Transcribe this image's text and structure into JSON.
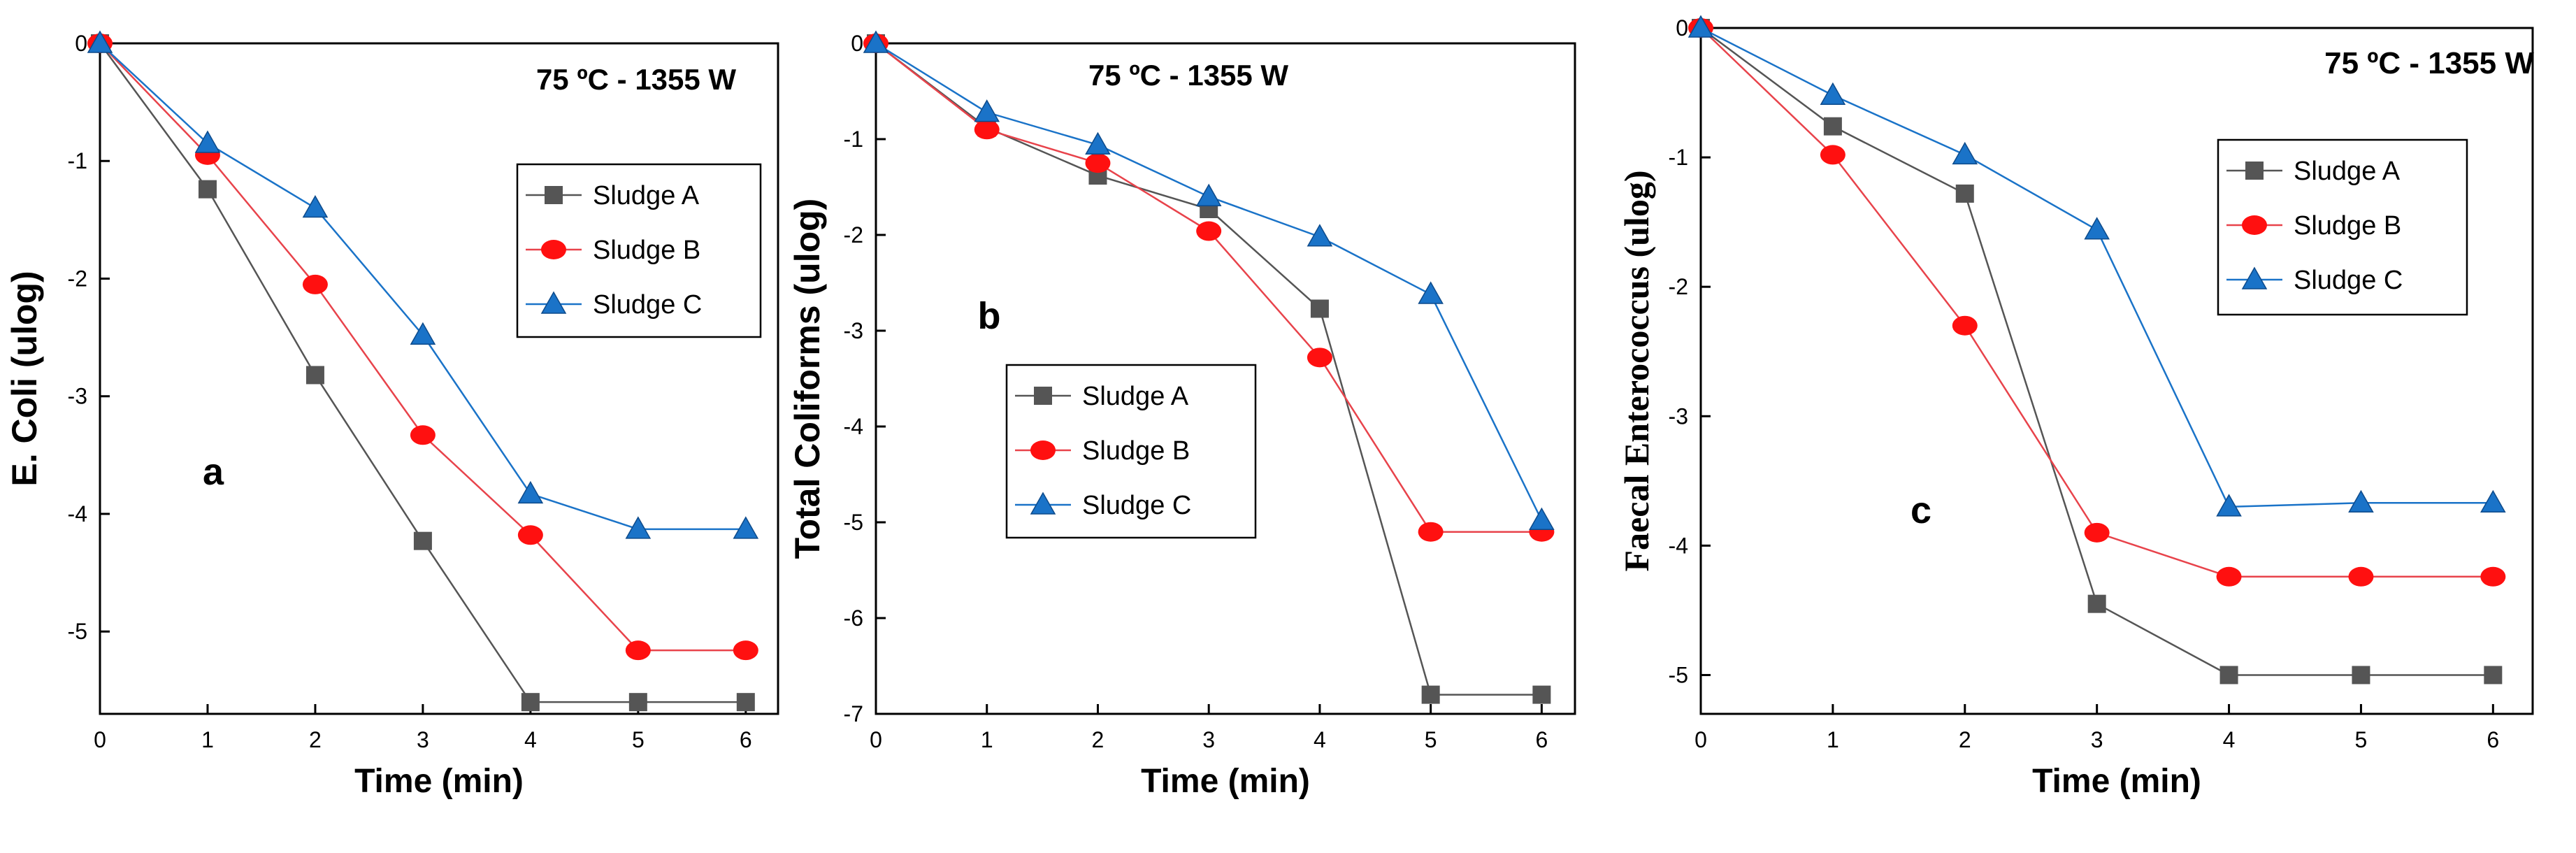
{
  "chart_data": [
    {
      "type": "line",
      "panel_label": "a",
      "annotation": "75 ºC - 1355 W",
      "xlabel": "Time (min)",
      "ylabel": "E. Coli (ulog)",
      "xlim": [
        0,
        6.3
      ],
      "ylim": [
        -5.7,
        0
      ],
      "xticks": [
        0,
        1,
        2,
        3,
        4,
        5,
        6
      ],
      "yticks": [
        0,
        -1,
        -2,
        -3,
        -4,
        -5
      ],
      "x": [
        0,
        1,
        2,
        3,
        4,
        5,
        6
      ],
      "legend_position": "upper-right",
      "series": [
        {
          "name": "Sludge A",
          "marker": "square",
          "line_color": "#555555",
          "marker_color": "#555555",
          "values": [
            0,
            -1.24,
            -2.82,
            -4.23,
            -5.6,
            -5.6,
            -5.6
          ]
        },
        {
          "name": "Sludge B",
          "marker": "circle",
          "line_color": "#e8434b",
          "marker_color": "#ff1010",
          "values": [
            0,
            -0.95,
            -2.05,
            -3.33,
            -4.18,
            -5.16,
            -5.16
          ]
        },
        {
          "name": "Sludge C",
          "marker": "triangle",
          "line_color": "#1a73c8",
          "marker_color": "#1a73c8",
          "values": [
            0,
            -0.85,
            -1.4,
            -2.48,
            -3.83,
            -4.13,
            -4.13
          ]
        }
      ]
    },
    {
      "type": "line",
      "panel_label": "b",
      "annotation": "75 ºC - 1355 W",
      "xlabel": "Time (min)",
      "ylabel": "Total Coliforms (ulog)",
      "xlim": [
        0,
        6.3
      ],
      "ylim": [
        -7,
        0
      ],
      "xticks": [
        0,
        1,
        2,
        3,
        4,
        5,
        6
      ],
      "yticks": [
        0,
        -1,
        -2,
        -3,
        -4,
        -5,
        -6,
        -7
      ],
      "x": [
        0,
        1,
        2,
        3,
        4,
        5,
        6
      ],
      "legend_position": "lower-center",
      "series": [
        {
          "name": "Sludge A",
          "marker": "square",
          "line_color": "#555555",
          "marker_color": "#555555",
          "values": [
            0,
            -0.88,
            -1.38,
            -1.73,
            -2.77,
            -6.8,
            -6.8
          ]
        },
        {
          "name": "Sludge B",
          "marker": "circle",
          "line_color": "#e8434b",
          "marker_color": "#ff1010",
          "values": [
            0,
            -0.9,
            -1.25,
            -1.96,
            -3.28,
            -5.1,
            -5.1
          ]
        },
        {
          "name": "Sludge C",
          "marker": "triangle",
          "line_color": "#1a73c8",
          "marker_color": "#1a73c8",
          "values": [
            0,
            -0.72,
            -1.06,
            -1.6,
            -2.02,
            -2.62,
            -4.98
          ]
        }
      ]
    },
    {
      "type": "line",
      "panel_label": "c",
      "annotation": "75 ºC - 1355 W",
      "xlabel": "Time (min)",
      "ylabel": "Faecal Enterococcus (ulog)",
      "xlim": [
        0,
        6.3
      ],
      "ylim": [
        -5.3,
        0
      ],
      "xticks": [
        0,
        1,
        2,
        3,
        4,
        5,
        6
      ],
      "yticks": [
        0,
        -1,
        -2,
        -3,
        -4,
        -5
      ],
      "x": [
        0,
        1,
        2,
        3,
        4,
        5,
        6
      ],
      "legend_position": "upper-right",
      "series": [
        {
          "name": "Sludge A",
          "marker": "square",
          "line_color": "#555555",
          "marker_color": "#555555",
          "values": [
            0,
            -0.76,
            -1.28,
            -4.45,
            -5.0,
            -5.0,
            -5.0
          ]
        },
        {
          "name": "Sludge B",
          "marker": "circle",
          "line_color": "#e8434b",
          "marker_color": "#ff1010",
          "values": [
            0,
            -0.98,
            -2.3,
            -3.9,
            -4.24,
            -4.24,
            -4.24
          ]
        },
        {
          "name": "Sludge C",
          "marker": "triangle",
          "line_color": "#1a73c8",
          "marker_color": "#1a73c8",
          "values": [
            0,
            -0.52,
            -0.98,
            -1.56,
            -3.7,
            -3.67,
            -3.67
          ]
        }
      ]
    }
  ]
}
